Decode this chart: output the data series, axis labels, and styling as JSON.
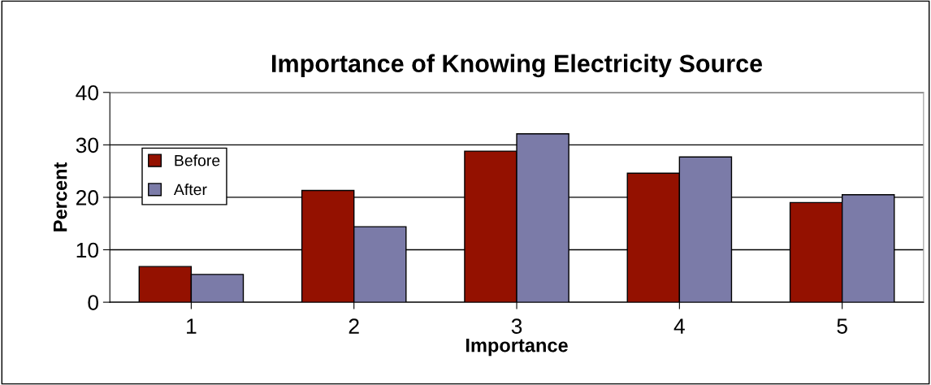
{
  "chart_data": {
    "type": "bar",
    "title": "Importance of Knowing Electricity Source",
    "xlabel": "Importance",
    "ylabel": "Percent",
    "categories": [
      "1",
      "2",
      "3",
      "4",
      "5"
    ],
    "series": [
      {
        "name": "Before",
        "color": "#941100",
        "values": [
          6.8,
          21.3,
          28.8,
          24.6,
          19.0
        ]
      },
      {
        "name": "After",
        "color": "#7b7ba8",
        "values": [
          5.3,
          14.4,
          32.1,
          27.7,
          20.5
        ]
      }
    ],
    "ylim": [
      0,
      40
    ],
    "yticks": [
      0,
      10,
      20,
      30,
      40
    ],
    "grid": "y",
    "legend": "left"
  }
}
